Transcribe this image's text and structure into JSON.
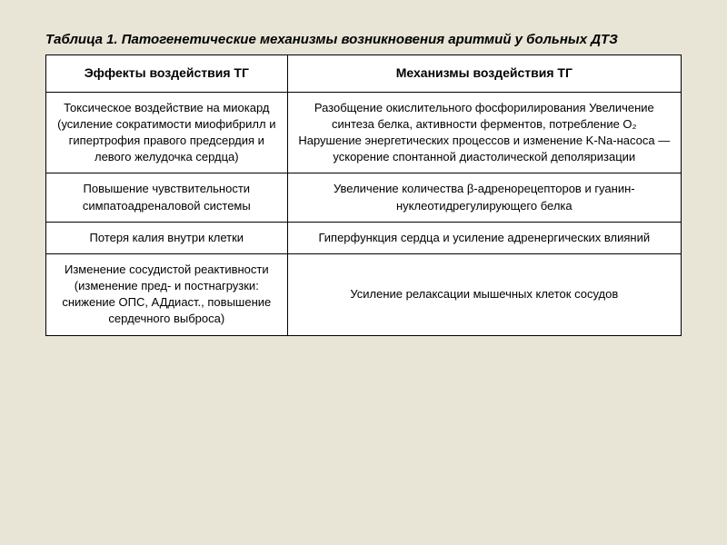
{
  "table": {
    "title": "Таблица 1. Патогенетические механизмы возникновения аритмий у больных ДТЗ",
    "headers": {
      "left": "Эффекты воздействия ТГ",
      "right": "Механизмы воздействия ТГ"
    },
    "rows": [
      {
        "left": "Токсическое воздействие на миокард (усиление сократимости миофибрилл и гипертрофия правого предсердия и левого желудочка сердца)",
        "right": "Разобщение окислительного фосфорилирования Увеличение синтеза белка, активности ферментов, потребление O₂\nНарушение энергетических процессов и изменение K-Na-насоса — ускорение спонтанной диастолической деполяризации"
      },
      {
        "left": "Повышение чувствительности симпатоадреналовой системы",
        "right": "Увеличение количества β-адренорецепторов и гуанин-нуклеотидрегулирующего белка"
      },
      {
        "left": "Потеря калия внутри клетки",
        "right": "Гиперфункция сердца и усиление адренергических влияний"
      },
      {
        "left": "Изменение сосудистой реактивности (изменение пред- и постнагрузки: снижение ОПС, АДдиаст., повышение сердечного выброса)",
        "right": "Усиление релаксации мышечных клеток сосудов"
      }
    ],
    "styling": {
      "background_color": "#e8e5d6",
      "table_background": "#ffffff",
      "border_color": "#000000",
      "border_width": 1.5,
      "title_fontsize": 15,
      "title_fontstyle": "italic",
      "title_fontweight": "bold",
      "header_fontsize": 14,
      "header_fontweight": "bold",
      "cell_fontsize": 13,
      "text_color": "#000000",
      "col_widths": [
        "38%",
        "62%"
      ],
      "font_family": "Arial, sans-serif"
    }
  }
}
